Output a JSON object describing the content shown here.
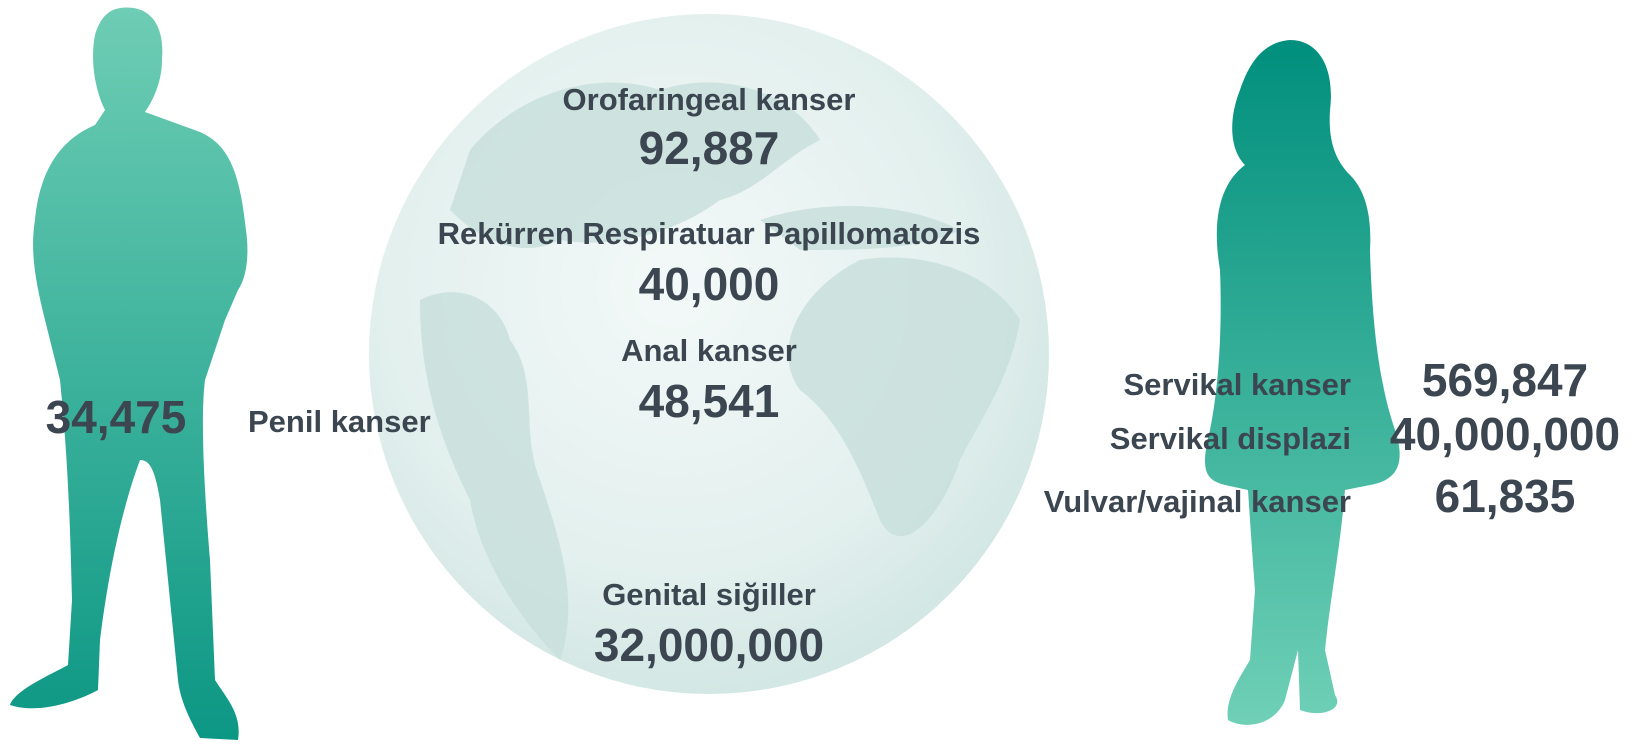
{
  "globe": {
    "items": [
      {
        "label": "Orofaringeal kanser",
        "value": "92,887"
      },
      {
        "label": "Rekürren Respiratuar Papillomatozis",
        "value": "40,000"
      },
      {
        "label": "Anal kanser",
        "value": "48,541"
      },
      {
        "label": "Genital siğiller",
        "value": "32,000,000"
      }
    ]
  },
  "male": {
    "items": [
      {
        "label": "Penil kanser",
        "value": "34,475"
      }
    ]
  },
  "female": {
    "items": [
      {
        "label": "Servikal kanser",
        "value": "569,847"
      },
      {
        "label": "Servikal displazi",
        "value": "40,000,000"
      },
      {
        "label": "Vulvar/vajinal kanser",
        "value": "61,835"
      }
    ]
  }
}
